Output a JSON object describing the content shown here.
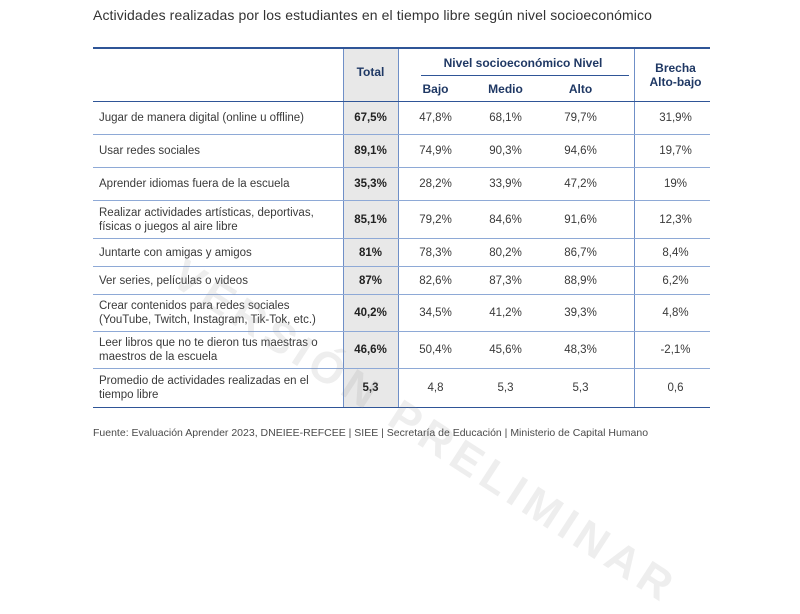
{
  "title": "Actividades realizadas por los estudiantes en el tiempo libre según nivel socioeconómico",
  "headers": {
    "total": "Total",
    "group": "Nivel socioeconómico Nivel",
    "bajo": "Bajo",
    "medio": "Medio",
    "alto": "Alto",
    "brecha_line1": "Brecha",
    "brecha_line2": "Alto-bajo"
  },
  "rows": [
    {
      "label": "Jugar de manera digital (online u offline)",
      "total": "67,5%",
      "bajo": "47,8%",
      "medio": "68,1%",
      "alto": "79,7%",
      "brecha": "31,9%"
    },
    {
      "label": "Usar redes sociales",
      "total": "89,1%",
      "bajo": "74,9%",
      "medio": "90,3%",
      "alto": "94,6%",
      "brecha": "19,7%"
    },
    {
      "label": "Aprender idiomas fuera de la escuela",
      "total": "35,3%",
      "bajo": "28,2%",
      "medio": "33,9%",
      "alto": "47,2%",
      "brecha": "19%"
    },
    {
      "label": "Realizar actividades artísticas, deportivas, físicas o juegos al aire libre",
      "total": "85,1%",
      "bajo": "79,2%",
      "medio": "84,6%",
      "alto": "91,6%",
      "brecha": "12,3%"
    },
    {
      "label": "Juntarte con amigas y amigos",
      "total": "81%",
      "bajo": "78,3%",
      "medio": "80,2%",
      "alto": "86,7%",
      "brecha": "8,4%"
    },
    {
      "label": "Ver series, películas o videos",
      "total": "87%",
      "bajo": "82,6%",
      "medio": "87,3%",
      "alto": "88,9%",
      "brecha": "6,2%"
    },
    {
      "label": "Crear contenidos para redes sociales (YouTube, Twitch, Instagram, Tik-Tok, etc.)",
      "total": "40,2%",
      "bajo": "34,5%",
      "medio": "41,2%",
      "alto": "39,3%",
      "brecha": "4,8%"
    },
    {
      "label": "Leer libros que no te dieron tus maestras o maestros de la escuela",
      "total": "46,6%",
      "bajo": "50,4%",
      "medio": "45,6%",
      "alto": "48,3%",
      "brecha": "-2,1%"
    },
    {
      "label": "Promedio de actividades realizadas en el tiempo libre",
      "total": "5,3",
      "bajo": "4,8",
      "medio": "5,3",
      "alto": "5,3",
      "brecha": "0,6"
    }
  ],
  "source": "Fuente: Evaluación Aprender 2023, DNEIEE-REFCEE | SIEE | Secretaría de Educación | Ministerio de Capital Humano",
  "watermark": "VERSIÓN PRELIMINAR"
}
